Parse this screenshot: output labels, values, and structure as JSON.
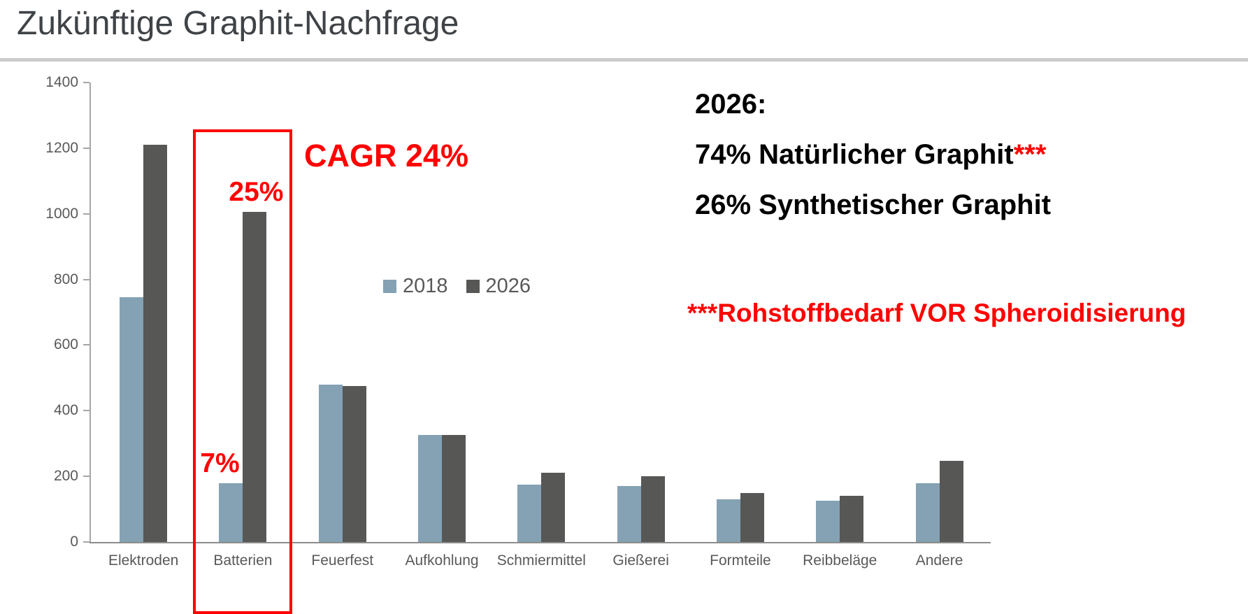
{
  "page": {
    "title": "Zukünftige Graphit-Nachfrage"
  },
  "chart_data": {
    "type": "bar",
    "title": "Zukünftige Graphit-Nachfrage",
    "categories": [
      "Elektroden",
      "Batterien",
      "Feuerfest",
      "Aufkohlung",
      "Schmiermittel",
      "Gießerei",
      "Formteile",
      "Reibbeläge",
      "Andere"
    ],
    "series": [
      {
        "name": "2018",
        "color": "#84a2b4",
        "values": [
          745,
          180,
          480,
          325,
          175,
          170,
          130,
          125,
          180
        ]
      },
      {
        "name": "2026",
        "color": "#575756",
        "values": [
          1210,
          1005,
          475,
          325,
          210,
          200,
          150,
          140,
          248
        ]
      }
    ],
    "xlabel": "",
    "ylabel": "",
    "ylim": [
      0,
      1400
    ],
    "yticks": [
      0,
      200,
      400,
      600,
      800,
      1000,
      1200,
      1400
    ],
    "grid": false,
    "legend_position": "center-top",
    "highlight": {
      "category": "Batterien",
      "box_color": "#ff0000",
      "labels": [
        {
          "text": "7%",
          "series": "2018"
        },
        {
          "text": "25%",
          "series": "2026"
        }
      ]
    }
  },
  "legend": {
    "items": [
      {
        "label": "2018",
        "color": "#84a2b4"
      },
      {
        "label": "2026",
        "color": "#575756"
      }
    ]
  },
  "annotations": {
    "cagr": "CAGR 24%",
    "right_block": {
      "line1": "2026:",
      "line2_black": "74% Natürlicher Graphit",
      "line2_red": "***",
      "line3": "26% Synthetischer Graphit",
      "footnote": "***Rohstoffbedarf VOR Spheroidisierung"
    },
    "colors": {
      "accent_red": "#ff0000",
      "text_gray": "#595959",
      "title_gray": "#3f4347"
    }
  }
}
